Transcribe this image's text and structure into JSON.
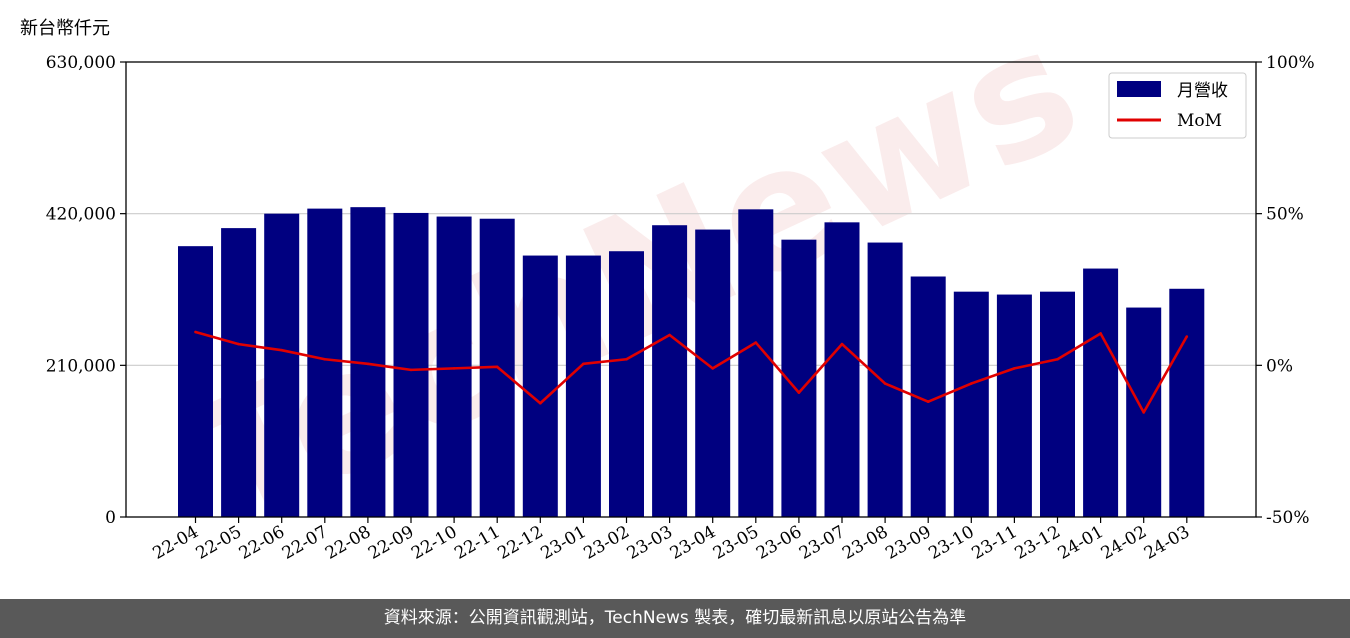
{
  "unit_label": "新台幣仟元",
  "footer_text": "資料來源：公開資訊觀測站，TechNews 製表，確切最新訊息以原站公告為準",
  "watermark_text": "TechNews",
  "colors": {
    "bar": "#000080",
    "line": "#e00000",
    "grid": "#cccccc"
  },
  "chart_data": {
    "type": "bar",
    "categories": [
      "22-04",
      "22-05",
      "22-06",
      "22-07",
      "22-08",
      "22-09",
      "22-10",
      "22-11",
      "22-12",
      "23-01",
      "23-02",
      "23-03",
      "23-04",
      "23-05",
      "23-06",
      "23-07",
      "23-08",
      "23-09",
      "23-10",
      "23-11",
      "23-12",
      "24-01",
      "24-02",
      "24-03"
    ],
    "series": [
      {
        "name": "月營收",
        "axis": "left",
        "kind": "bar",
        "values": [
          375000,
          400000,
          420000,
          427000,
          429000,
          421000,
          416000,
          413000,
          362000,
          362000,
          368000,
          404000,
          398000,
          426000,
          384000,
          408000,
          380000,
          333000,
          312000,
          308000,
          312000,
          344000,
          290000,
          316000
        ]
      },
      {
        "name": "MoM",
        "axis": "right",
        "kind": "line",
        "values": [
          11,
          7,
          5,
          2,
          0.5,
          -1.5,
          -1,
          -0.5,
          -12.5,
          0.5,
          2,
          10,
          -1,
          7.5,
          -9,
          7,
          -6,
          -12,
          -6,
          -1,
          2,
          10.5,
          -15.5,
          9.5
        ]
      }
    ],
    "y_left": {
      "range": [
        0,
        630000
      ],
      "ticks": [
        0,
        210000,
        420000,
        630000
      ],
      "tick_labels": [
        "0",
        "210,000",
        "420,000",
        "630,000"
      ]
    },
    "y_right": {
      "range": [
        -50,
        100
      ],
      "ticks": [
        -50,
        0,
        50,
        100
      ],
      "tick_labels": [
        "-50%",
        "0%",
        "50%",
        "100%"
      ]
    },
    "grid": "horizontal",
    "legend_position": "top-right"
  }
}
